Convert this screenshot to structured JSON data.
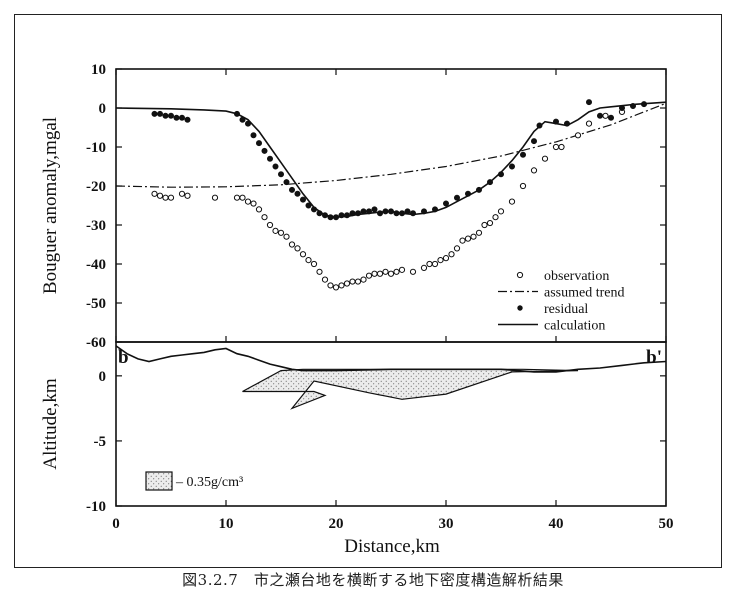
{
  "caption": "図3.2.7　市之瀬台地を横断する地下密度構造解析結果",
  "chart_data": [
    {
      "type": "line",
      "ylabel": "Bouguer anomaly,mgal",
      "xlim": [
        0,
        50
      ],
      "ylim": [
        -60,
        10
      ],
      "yticks": [
        "10",
        "0",
        "-10",
        "-20",
        "-30",
        "-40",
        "-50",
        "-60"
      ],
      "ytick_values": [
        10,
        0,
        -10,
        -20,
        -30,
        -40,
        -50,
        -60
      ],
      "legend_position": "bottom-right",
      "series": [
        {
          "name": "observation",
          "marker": "open-circle",
          "x": [
            3.5,
            4,
            4.5,
            5,
            6,
            6.5,
            9,
            11,
            11.5,
            12,
            12.5,
            13,
            13.5,
            14,
            14.5,
            15,
            15.5,
            16,
            16.5,
            17,
            17.5,
            18,
            18.5,
            19,
            19.5,
            20,
            20.5,
            21,
            21.5,
            22,
            22.5,
            23,
            23.5,
            24,
            24.5,
            25,
            25.5,
            26,
            27,
            28,
            28.5,
            29,
            29.5,
            30,
            30.5,
            31,
            31.5,
            32,
            32.5,
            33,
            33.5,
            34,
            34.5,
            35,
            36,
            37,
            38,
            39,
            40,
            40.5,
            42,
            43,
            44.5,
            46
          ],
          "y": [
            -22,
            -22.5,
            -23,
            -23,
            -22,
            -22.5,
            -23,
            -23,
            -23,
            -24,
            -24.5,
            -26,
            -28,
            -30,
            -31.5,
            -32,
            -33,
            -35,
            -36,
            -37.5,
            -39,
            -40,
            -42,
            -44,
            -45.5,
            -46,
            -45.5,
            -45,
            -44.5,
            -44.5,
            -44,
            -43,
            -42.5,
            -42.5,
            -42,
            -42.5,
            -42,
            -41.5,
            -42,
            -41,
            -40,
            -40,
            -39,
            -38.5,
            -37.5,
            -36,
            -34,
            -33.5,
            -33,
            -32,
            -30,
            -29.5,
            -28,
            -26.5,
            -24,
            -20,
            -16,
            -13,
            -10,
            -10,
            -7,
            -4,
            -2,
            -1
          ]
        },
        {
          "name": "assumed trend",
          "style": "dash-dot",
          "x": [
            0,
            5,
            10,
            15,
            20,
            25,
            30,
            35,
            40,
            45,
            50
          ],
          "y": [
            -20,
            -20.3,
            -20.2,
            -19.7,
            -18.6,
            -17,
            -15,
            -12.3,
            -8.7,
            -4.3,
            1.2
          ]
        },
        {
          "name": "residual",
          "marker": "filled-circle",
          "x": [
            3.5,
            4,
            4.5,
            5,
            5.5,
            6,
            6.5,
            11,
            11.5,
            12,
            12.5,
            13,
            13.5,
            14,
            14.5,
            15,
            15.5,
            16,
            16.5,
            17,
            17.5,
            18,
            18.5,
            19,
            19.5,
            20,
            20.5,
            21,
            21.5,
            22,
            22.5,
            23,
            23.5,
            24,
            24.5,
            25,
            25.5,
            26,
            26.5,
            27,
            28,
            29,
            30,
            31,
            32,
            33,
            34,
            35,
            36,
            37,
            38,
            38.5,
            40,
            41,
            43,
            44,
            45,
            46,
            47,
            48
          ],
          "y": [
            -1.5,
            -1.5,
            -2,
            -2,
            -2.5,
            -2.5,
            -3,
            -1.5,
            -3,
            -4,
            -7,
            -9,
            -11,
            -13,
            -15,
            -17,
            -19,
            -21,
            -22,
            -23.5,
            -25,
            -26,
            -27,
            -27.5,
            -28,
            -28,
            -27.5,
            -27.5,
            -27,
            -27,
            -26.5,
            -26.5,
            -26,
            -27,
            -26.5,
            -26.5,
            -27,
            -27,
            -26.5,
            -27,
            -26.5,
            -26,
            -24.5,
            -23,
            -22,
            -21,
            -19,
            -17,
            -15,
            -12,
            -8.5,
            -4.5,
            -3.5,
            -4,
            1.5,
            -2,
            -2.5,
            0,
            0.5,
            1
          ]
        },
        {
          "name": "calculation",
          "style": "solid",
          "x": [
            0,
            5,
            8,
            10,
            11,
            12,
            13,
            14,
            15,
            16,
            17,
            18,
            19,
            20,
            21,
            22,
            23,
            24,
            25,
            26,
            27,
            28,
            29,
            30,
            31,
            32,
            33,
            34,
            35,
            36,
            37,
            38,
            39,
            40,
            41,
            42,
            43,
            44,
            45,
            46,
            47,
            48,
            49,
            50
          ],
          "y": [
            0,
            -0.2,
            -0.5,
            -0.8,
            -1.5,
            -3,
            -6,
            -10,
            -14,
            -18,
            -22,
            -25.5,
            -27.5,
            -28,
            -27.8,
            -27.3,
            -27,
            -26.7,
            -26.5,
            -27,
            -27.3,
            -27,
            -26.5,
            -25.5,
            -24,
            -22.5,
            -21,
            -19,
            -16.5,
            -13.5,
            -10,
            -6,
            -3.5,
            -4,
            -4.5,
            -3,
            -1,
            0,
            0.3,
            0.6,
            0.9,
            1.1,
            1.3,
            1.5
          ]
        }
      ]
    },
    {
      "type": "area",
      "xlabel": "Distance,km",
      "ylabel": "Altitude,km",
      "xlim": [
        0,
        50
      ],
      "ylim": [
        -10,
        2.6
      ],
      "xticks": [
        "0",
        "10",
        "20",
        "30",
        "40",
        "50"
      ],
      "xtick_values": [
        0,
        10,
        20,
        30,
        40,
        50
      ],
      "yticks": [
        "0",
        "-5",
        "-10"
      ],
      "ytick_values": [
        0,
        -5,
        -10
      ],
      "label_left": "b",
      "label_right": "b'",
      "legend_label": "– 0.35g/cm³",
      "surface": {
        "x": [
          0,
          1,
          2,
          3,
          4,
          5,
          6,
          7,
          8,
          9,
          10,
          11,
          12,
          13,
          14,
          15,
          16,
          17,
          18,
          20,
          25,
          30,
          35,
          38,
          40,
          42,
          44,
          46,
          48,
          50
        ],
        "y": [
          2.3,
          1.7,
          1.3,
          1.1,
          1.3,
          1.5,
          1.6,
          1.7,
          1.8,
          2.0,
          2.1,
          1.7,
          1.5,
          1.2,
          0.9,
          0.7,
          0.5,
          0.4,
          0.4,
          0.4,
          0.5,
          0.5,
          0.5,
          0.3,
          0.3,
          0.5,
          0.6,
          0.8,
          1.0,
          1.1
        ]
      },
      "body": {
        "x": [
          11.5,
          15,
          17,
          37,
          42,
          36,
          30,
          26,
          23,
          18,
          16,
          19,
          18,
          11.5
        ],
        "y": [
          -1.2,
          0.4,
          0.5,
          0.5,
          0.4,
          0.3,
          -1.4,
          -1.8,
          -1.3,
          -0.4,
          -2.5,
          -1.5,
          -1.2,
          -1.2
        ]
      }
    }
  ]
}
